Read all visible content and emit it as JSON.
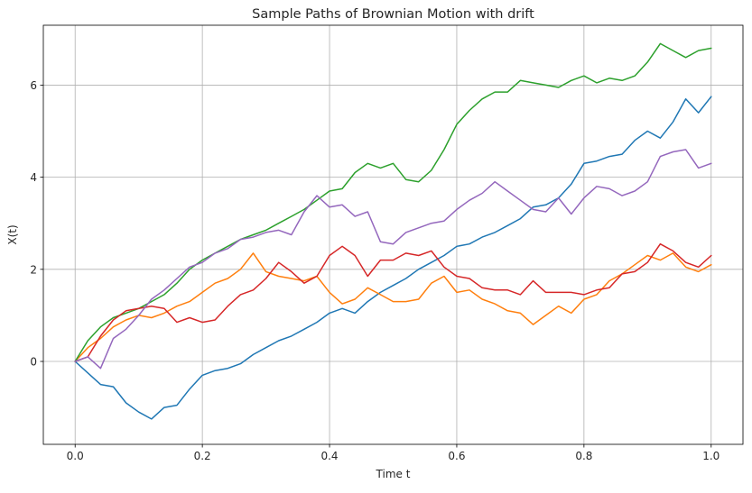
{
  "chart_data": {
    "type": "line",
    "title": "Sample Paths of Brownian Motion with drift",
    "xlabel": "Time t",
    "ylabel": "X(t)",
    "xlim": [
      -0.05,
      1.05
    ],
    "ylim": [
      -1.8,
      7.3
    ],
    "xticks": [
      0.0,
      0.2,
      0.4,
      0.6,
      0.8,
      1.0
    ],
    "xtick_labels": [
      "0.0",
      "0.2",
      "0.4",
      "0.6",
      "0.8",
      "1.0"
    ],
    "yticks": [
      0,
      2,
      4,
      6
    ],
    "ytick_labels": [
      "0",
      "2",
      "4",
      "6"
    ],
    "grid": true,
    "series": [
      {
        "color": "#1f77b4",
        "x": [
          0.0,
          0.02,
          0.04,
          0.06,
          0.08,
          0.1,
          0.12,
          0.14,
          0.16,
          0.18,
          0.2,
          0.22,
          0.24,
          0.26,
          0.28,
          0.3,
          0.32,
          0.34,
          0.36,
          0.38,
          0.4,
          0.42,
          0.44,
          0.46,
          0.48,
          0.5,
          0.52,
          0.54,
          0.56,
          0.58,
          0.6,
          0.62,
          0.64,
          0.66,
          0.68,
          0.7,
          0.72,
          0.74,
          0.76,
          0.78,
          0.8,
          0.82,
          0.84,
          0.86,
          0.88,
          0.9,
          0.92,
          0.94,
          0.96,
          0.98,
          1.0
        ],
        "values": [
          0.0,
          -0.25,
          -0.5,
          -0.55,
          -0.9,
          -1.1,
          -1.25,
          -1.0,
          -0.95,
          -0.6,
          -0.3,
          -0.2,
          -0.15,
          -0.05,
          0.15,
          0.3,
          0.45,
          0.55,
          0.7,
          0.85,
          1.05,
          1.15,
          1.05,
          1.3,
          1.5,
          1.65,
          1.8,
          2.0,
          2.15,
          2.3,
          2.5,
          2.55,
          2.7,
          2.8,
          2.95,
          3.1,
          3.35,
          3.4,
          3.55,
          3.85,
          4.3,
          4.35,
          4.45,
          4.5,
          4.8,
          5.0,
          4.85,
          5.2,
          5.7,
          5.4,
          5.75
        ]
      },
      {
        "color": "#ff7f0e",
        "x": [
          0.0,
          0.02,
          0.04,
          0.06,
          0.08,
          0.1,
          0.12,
          0.14,
          0.16,
          0.18,
          0.2,
          0.22,
          0.24,
          0.26,
          0.28,
          0.3,
          0.32,
          0.34,
          0.36,
          0.38,
          0.4,
          0.42,
          0.44,
          0.46,
          0.48,
          0.5,
          0.52,
          0.54,
          0.56,
          0.58,
          0.6,
          0.62,
          0.64,
          0.66,
          0.68,
          0.7,
          0.72,
          0.74,
          0.76,
          0.78,
          0.8,
          0.82,
          0.84,
          0.86,
          0.88,
          0.9,
          0.92,
          0.94,
          0.96,
          0.98,
          1.0
        ],
        "values": [
          0.0,
          0.3,
          0.5,
          0.75,
          0.9,
          1.0,
          0.95,
          1.05,
          1.2,
          1.3,
          1.5,
          1.7,
          1.8,
          2.0,
          2.35,
          1.95,
          1.85,
          1.8,
          1.75,
          1.85,
          1.5,
          1.25,
          1.35,
          1.6,
          1.45,
          1.3,
          1.3,
          1.35,
          1.7,
          1.85,
          1.5,
          1.55,
          1.35,
          1.25,
          1.1,
          1.05,
          0.8,
          1.0,
          1.2,
          1.05,
          1.35,
          1.45,
          1.75,
          1.9,
          2.1,
          2.3,
          2.2,
          2.35,
          2.05,
          1.95,
          2.1
        ]
      },
      {
        "color": "#2ca02c",
        "x": [
          0.0,
          0.02,
          0.04,
          0.06,
          0.08,
          0.1,
          0.12,
          0.14,
          0.16,
          0.18,
          0.2,
          0.22,
          0.24,
          0.26,
          0.28,
          0.3,
          0.32,
          0.34,
          0.36,
          0.38,
          0.4,
          0.42,
          0.44,
          0.46,
          0.48,
          0.5,
          0.52,
          0.54,
          0.56,
          0.58,
          0.6,
          0.62,
          0.64,
          0.66,
          0.68,
          0.7,
          0.72,
          0.74,
          0.76,
          0.78,
          0.8,
          0.82,
          0.84,
          0.86,
          0.88,
          0.9,
          0.92,
          0.94,
          0.96,
          0.98,
          1.0
        ],
        "values": [
          0.0,
          0.45,
          0.75,
          0.95,
          1.05,
          1.15,
          1.3,
          1.45,
          1.7,
          2.0,
          2.2,
          2.35,
          2.5,
          2.65,
          2.75,
          2.85,
          3.0,
          3.15,
          3.3,
          3.5,
          3.7,
          3.75,
          4.1,
          4.3,
          4.2,
          4.3,
          3.95,
          3.9,
          4.15,
          4.6,
          5.15,
          5.45,
          5.7,
          5.85,
          5.85,
          6.1,
          6.05,
          6.0,
          5.95,
          6.1,
          6.2,
          6.05,
          6.15,
          6.1,
          6.2,
          6.5,
          6.9,
          6.75,
          6.6,
          6.75,
          6.8
        ]
      },
      {
        "color": "#d62728",
        "x": [
          0.0,
          0.02,
          0.04,
          0.06,
          0.08,
          0.1,
          0.12,
          0.14,
          0.16,
          0.18,
          0.2,
          0.22,
          0.24,
          0.26,
          0.28,
          0.3,
          0.32,
          0.34,
          0.36,
          0.38,
          0.4,
          0.42,
          0.44,
          0.46,
          0.48,
          0.5,
          0.52,
          0.54,
          0.56,
          0.58,
          0.6,
          0.62,
          0.64,
          0.66,
          0.68,
          0.7,
          0.72,
          0.74,
          0.76,
          0.78,
          0.8,
          0.82,
          0.84,
          0.86,
          0.88,
          0.9,
          0.92,
          0.94,
          0.96,
          0.98,
          1.0
        ],
        "values": [
          0.0,
          0.1,
          0.55,
          0.9,
          1.1,
          1.15,
          1.2,
          1.15,
          0.85,
          0.95,
          0.85,
          0.9,
          1.2,
          1.45,
          1.55,
          1.8,
          2.15,
          1.95,
          1.7,
          1.85,
          2.3,
          2.5,
          2.3,
          1.85,
          2.2,
          2.2,
          2.35,
          2.3,
          2.4,
          2.05,
          1.85,
          1.8,
          1.6,
          1.55,
          1.55,
          1.45,
          1.75,
          1.5,
          1.5,
          1.5,
          1.45,
          1.55,
          1.6,
          1.9,
          1.95,
          2.15,
          2.55,
          2.4,
          2.15,
          2.05,
          2.3
        ]
      },
      {
        "color": "#9467bd",
        "x": [
          0.0,
          0.02,
          0.04,
          0.06,
          0.08,
          0.1,
          0.12,
          0.14,
          0.16,
          0.18,
          0.2,
          0.22,
          0.24,
          0.26,
          0.28,
          0.3,
          0.32,
          0.34,
          0.36,
          0.38,
          0.4,
          0.42,
          0.44,
          0.46,
          0.48,
          0.5,
          0.52,
          0.54,
          0.56,
          0.58,
          0.6,
          0.62,
          0.64,
          0.66,
          0.68,
          0.7,
          0.72,
          0.74,
          0.76,
          0.78,
          0.8,
          0.82,
          0.84,
          0.86,
          0.88,
          0.9,
          0.92,
          0.94,
          0.96,
          0.98,
          1.0
        ],
        "values": [
          0.0,
          0.1,
          -0.15,
          0.5,
          0.7,
          1.0,
          1.35,
          1.55,
          1.8,
          2.05,
          2.15,
          2.35,
          2.45,
          2.65,
          2.7,
          2.8,
          2.85,
          2.75,
          3.25,
          3.6,
          3.35,
          3.4,
          3.15,
          3.25,
          2.6,
          2.55,
          2.8,
          2.9,
          3.0,
          3.05,
          3.3,
          3.5,
          3.65,
          3.9,
          3.7,
          3.5,
          3.3,
          3.25,
          3.55,
          3.2,
          3.55,
          3.8,
          3.75,
          3.6,
          3.7,
          3.9,
          4.45,
          4.55,
          4.6,
          4.2,
          4.3
        ]
      }
    ]
  }
}
